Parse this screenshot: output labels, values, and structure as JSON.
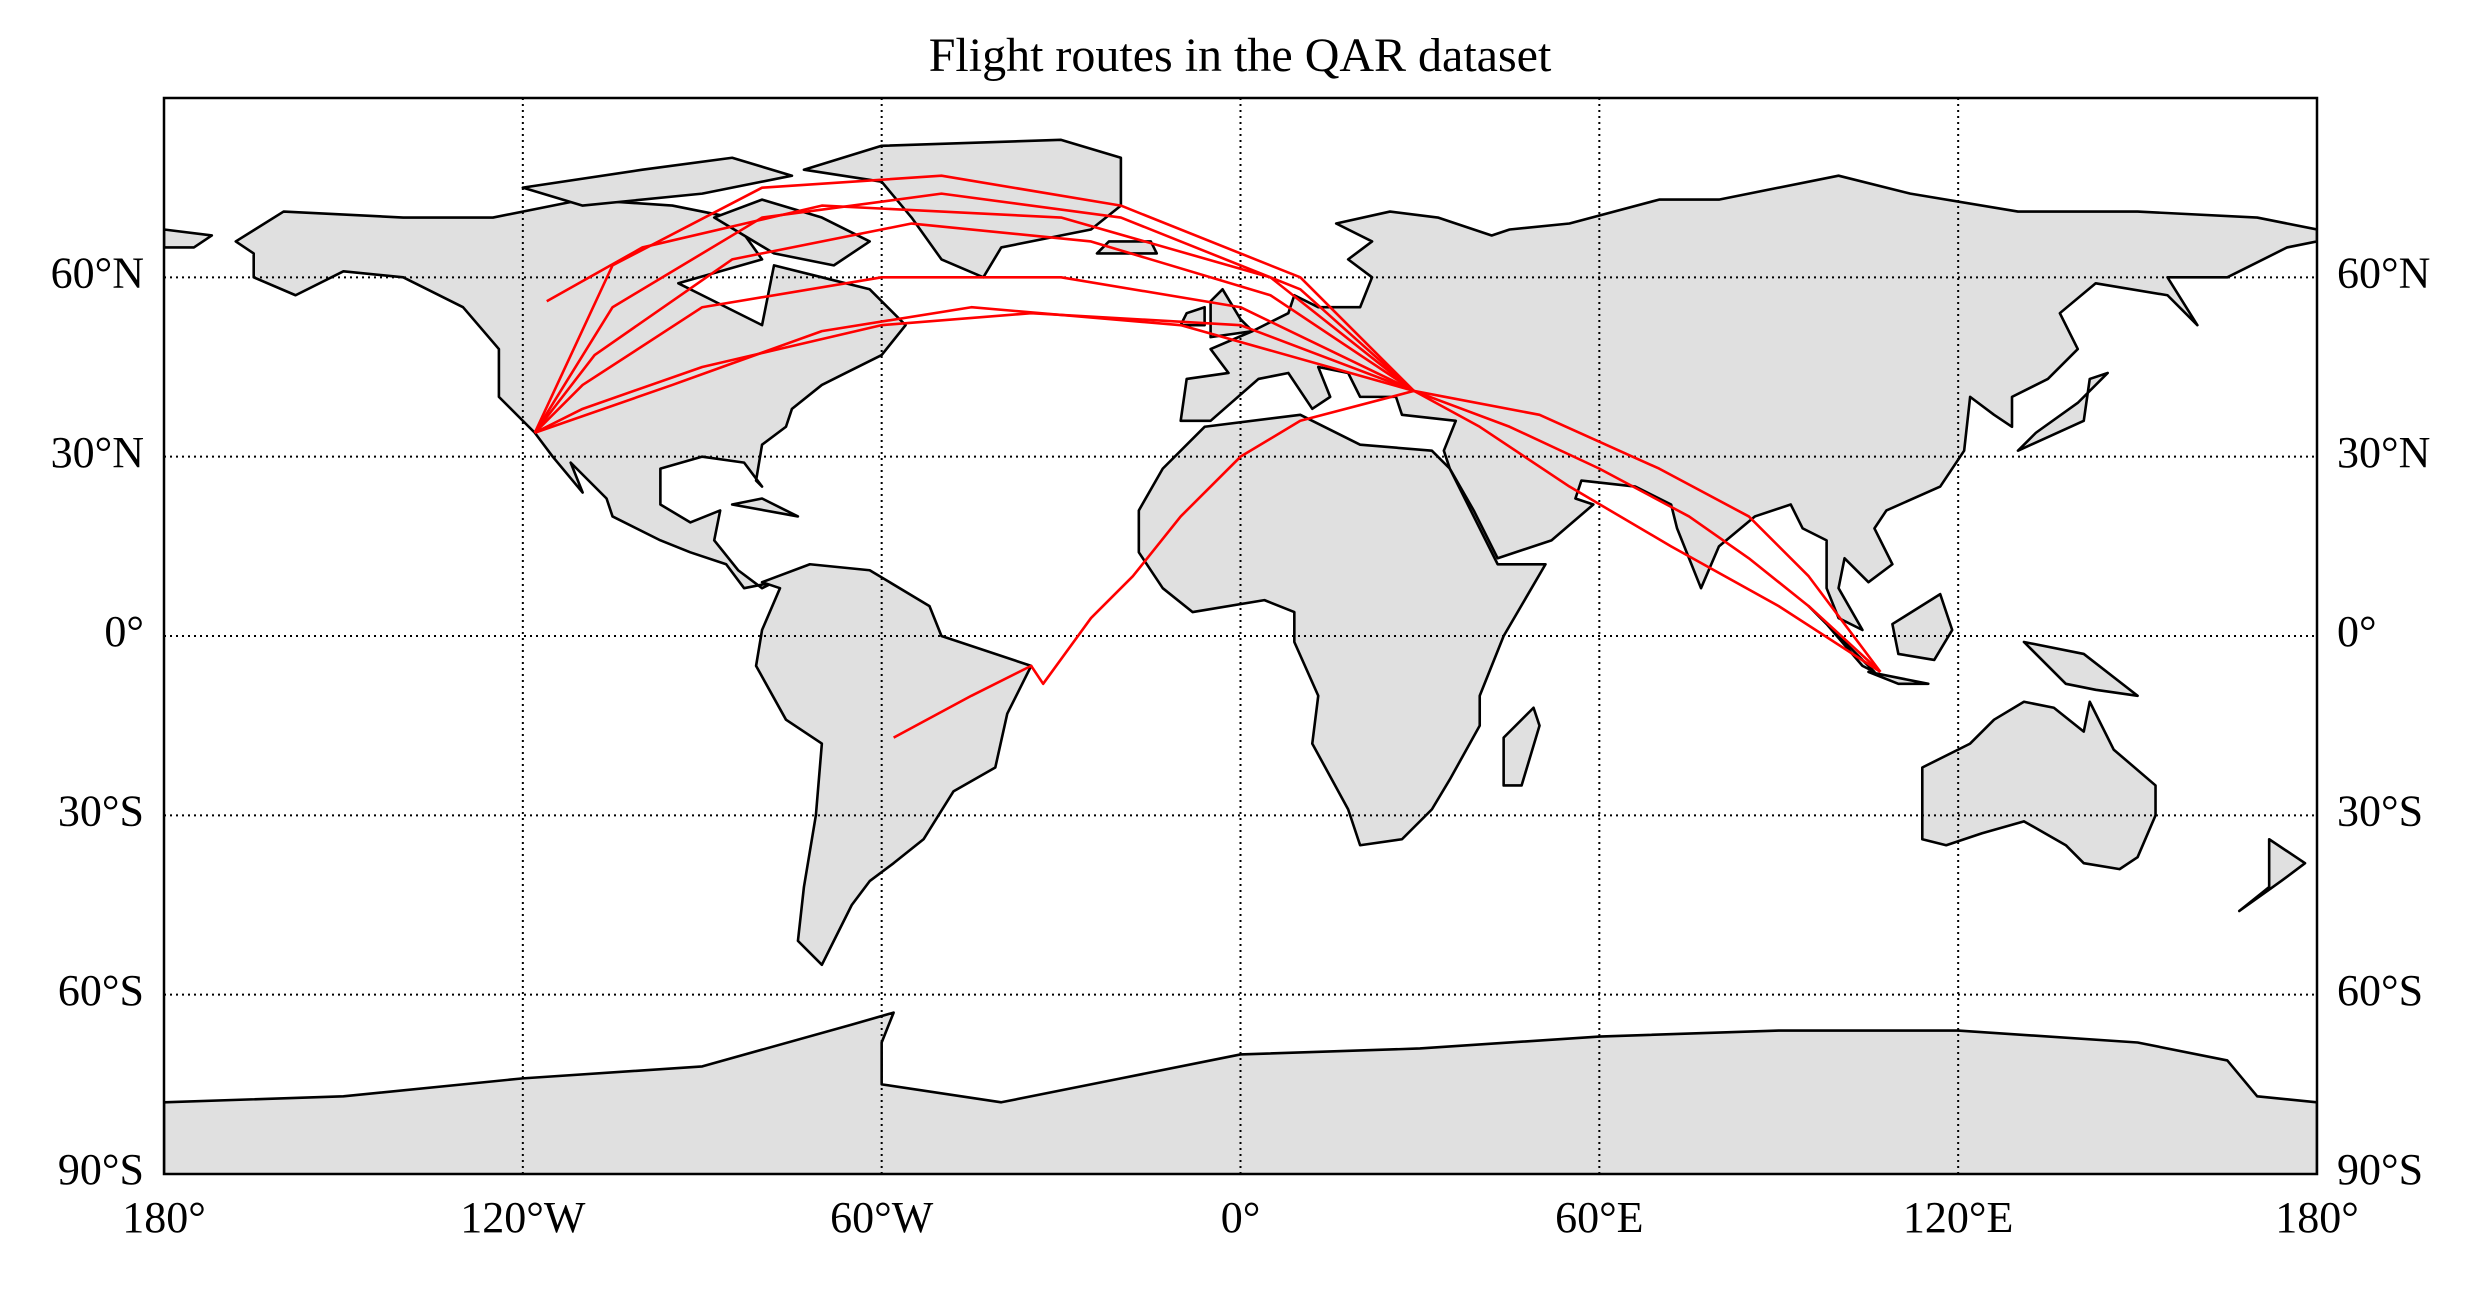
{
  "chart_data": {
    "type": "map",
    "title": "Flight routes in the QAR dataset",
    "xlim": [
      -180,
      180
    ],
    "ylim": [
      -90,
      90
    ],
    "xticks": [
      {
        "value": -180,
        "label": "180°"
      },
      {
        "value": -120,
        "label": "120°W"
      },
      {
        "value": -60,
        "label": "60°W"
      },
      {
        "value": 0,
        "label": "0°"
      },
      {
        "value": 60,
        "label": "60°E"
      },
      {
        "value": 120,
        "label": "120°E"
      },
      {
        "value": 180,
        "label": "180°"
      }
    ],
    "yticks": [
      {
        "value": -90,
        "label": "90°S"
      },
      {
        "value": -60,
        "label": "60°S"
      },
      {
        "value": -30,
        "label": "30°S"
      },
      {
        "value": 0,
        "label": "0°"
      },
      {
        "value": 30,
        "label": "30°N"
      },
      {
        "value": 60,
        "label": "60°N"
      }
    ],
    "grid": true,
    "route_color": "#ff0000",
    "routes": [
      {
        "lon": [
          29,
          10,
          -20,
          -50,
          -80,
          -105,
          -118
        ],
        "lat": [
          41,
          60,
          72,
          77,
          75,
          62,
          34
        ]
      },
      {
        "lon": [
          29,
          10,
          -20,
          -50,
          -80,
          -105,
          -118
        ],
        "lat": [
          41,
          58,
          70,
          74,
          70,
          55,
          34
        ]
      },
      {
        "lon": [
          29,
          5,
          -25,
          -55,
          -85,
          -108,
          -118
        ],
        "lat": [
          41,
          57,
          66,
          69,
          63,
          47,
          34
        ]
      },
      {
        "lon": [
          29,
          0,
          -30,
          -60,
          -90,
          -110,
          -118
        ],
        "lat": [
          41,
          55,
          60,
          60,
          55,
          42,
          34
        ]
      },
      {
        "lon": [
          29,
          0,
          -35,
          -60,
          -90,
          -110,
          -118
        ],
        "lat": [
          41,
          52,
          54,
          52,
          45,
          38,
          34
        ]
      },
      {
        "lon": [
          29,
          -10,
          -45,
          -70,
          -95,
          -118
        ],
        "lat": [
          41,
          52,
          55,
          51,
          42,
          34
        ]
      },
      {
        "lon": [
          29,
          5,
          -30,
          -70,
          -100,
          -116
        ],
        "lat": [
          41,
          60,
          70,
          72,
          65,
          56
        ]
      },
      {
        "lon": [
          29,
          45,
          60,
          75,
          85,
          95,
          107
        ],
        "lat": [
          41,
          35,
          28,
          20,
          13,
          5,
          -6
        ]
      },
      {
        "lon": [
          29,
          50,
          70,
          85,
          95,
          107
        ],
        "lat": [
          41,
          37,
          28,
          20,
          10,
          -6
        ]
      },
      {
        "lon": [
          29,
          40,
          55,
          72,
          90,
          107
        ],
        "lat": [
          41,
          35,
          25,
          15,
          5,
          -6
        ]
      },
      {
        "lon": [
          29,
          10,
          0,
          -10,
          -18,
          -25,
          -33,
          -35,
          -45,
          -58
        ],
        "lat": [
          41,
          36,
          30,
          20,
          10,
          3,
          -8,
          -5,
          -10,
          -17
        ]
      }
    ]
  }
}
